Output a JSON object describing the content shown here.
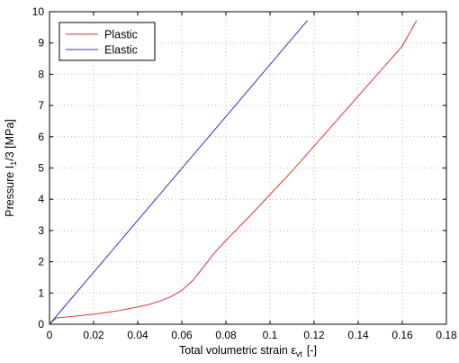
{
  "chart_data": {
    "type": "line",
    "xlabel": "Total volumetric strain ε",
    "xlabel_subscript": "vt",
    "xlabel_unit": "[-]",
    "ylabel": "Pressure I",
    "ylabel_subscript": "1",
    "ylabel_rest": "/3 [MPa]",
    "xlim": [
      0,
      0.18
    ],
    "ylim": [
      0,
      10
    ],
    "xticks": [
      "0",
      "0.02",
      "0.04",
      "0.06",
      "0.08",
      "0.1",
      "0.12",
      "0.14",
      "0.16",
      "0.18"
    ],
    "yticks": [
      "0",
      "1",
      "2",
      "3",
      "4",
      "5",
      "6",
      "7",
      "8",
      "9",
      "10"
    ],
    "grid": true,
    "legend_position": "top-left",
    "series": [
      {
        "name": "Plastic",
        "color": "#e03030",
        "x": [
          0,
          0.003,
          0.01,
          0.02,
          0.03,
          0.04,
          0.045,
          0.05,
          0.055,
          0.06,
          0.065,
          0.07,
          0.075,
          0.08,
          0.09,
          0.1,
          0.11,
          0.12,
          0.13,
          0.14,
          0.15,
          0.16,
          0.1665
        ],
        "y": [
          0,
          0.2,
          0.25,
          0.32,
          0.42,
          0.55,
          0.63,
          0.74,
          0.88,
          1.08,
          1.4,
          1.85,
          2.3,
          2.68,
          3.4,
          4.15,
          4.9,
          5.7,
          6.5,
          7.3,
          8.1,
          8.9,
          9.72
        ]
      },
      {
        "name": "Elastic",
        "color": "#3030c0",
        "x": [
          0,
          0.0585,
          0.117
        ],
        "y": [
          0,
          4.86,
          9.72
        ]
      }
    ]
  }
}
